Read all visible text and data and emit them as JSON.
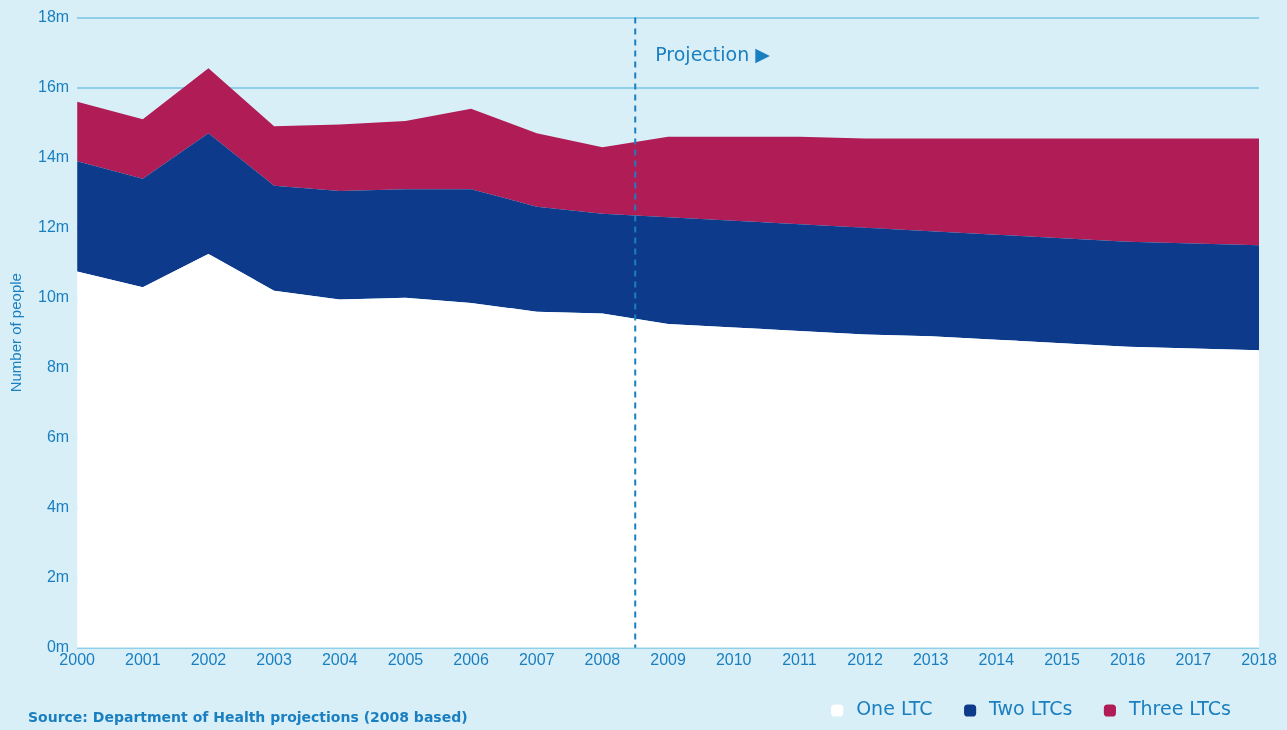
{
  "chart_data": {
    "type": "area",
    "stacked": true,
    "ylabel": "Number of people",
    "x": [
      2000,
      2001,
      2002,
      2003,
      2004,
      2005,
      2006,
      2007,
      2008,
      2009,
      2010,
      2011,
      2012,
      2013,
      2014,
      2015,
      2016,
      2017,
      2018
    ],
    "series": [
      {
        "name": "One LTC",
        "color": "#ffffff",
        "values": [
          10.75,
          10.3,
          11.25,
          10.2,
          9.95,
          10.0,
          9.85,
          9.6,
          9.55,
          9.25,
          9.15,
          9.05,
          8.95,
          8.9,
          8.8,
          8.7,
          8.6,
          8.55,
          8.5
        ]
      },
      {
        "name": "Two LTCs",
        "color": "#0d3a8a",
        "values": [
          3.15,
          3.1,
          3.45,
          3.0,
          3.1,
          3.1,
          3.25,
          3.0,
          2.85,
          3.05,
          3.05,
          3.05,
          3.05,
          3.0,
          3.0,
          3.0,
          3.0,
          3.0,
          3.0
        ]
      },
      {
        "name": "Three LTCs",
        "color": "#b01c55",
        "values": [
          1.7,
          1.7,
          1.85,
          1.7,
          1.9,
          1.95,
          2.3,
          2.1,
          1.9,
          2.3,
          2.4,
          2.5,
          2.55,
          2.65,
          2.75,
          2.85,
          2.95,
          3.0,
          3.05
        ]
      }
    ],
    "xlim": [
      2000,
      2018
    ],
    "xticks": [
      2000,
      2001,
      2002,
      2003,
      2004,
      2005,
      2006,
      2007,
      2008,
      2009,
      2010,
      2011,
      2012,
      2013,
      2014,
      2015,
      2016,
      2017,
      2018
    ],
    "ylim": [
      0,
      18
    ],
    "yticks": [
      {
        "value": 0,
        "label": "0m"
      },
      {
        "value": 2,
        "label": "2m"
      },
      {
        "value": 4,
        "label": "4m"
      },
      {
        "value": 6,
        "label": "6m"
      },
      {
        "value": 8,
        "label": "8m"
      },
      {
        "value": 10,
        "label": "10m"
      },
      {
        "value": 12,
        "label": "12m"
      },
      {
        "value": 14,
        "label": "14m"
      },
      {
        "value": 16,
        "label": "16m"
      },
      {
        "value": 18,
        "label": "18m"
      }
    ],
    "ref_lines": [
      {
        "axis": "x",
        "value": 2008.5,
        "label": "Projection ▶",
        "color": "#1a7fc0",
        "line_style": "dashed"
      }
    ],
    "grid": "y",
    "legend": "bottom right",
    "annotations": [
      "Source: Department of Health projections (2008 based)"
    ]
  }
}
